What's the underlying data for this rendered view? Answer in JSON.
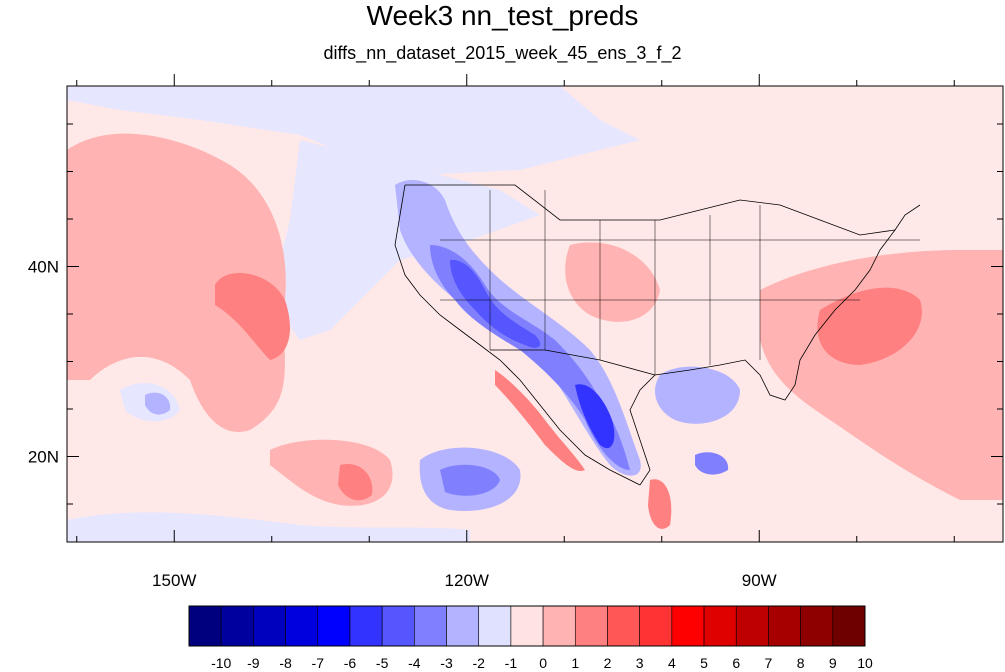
{
  "title": "Week3 nn_test_preds",
  "subtitle": "diffs_nn_dataset_2015_week_45_ens_3_f_2",
  "map": {
    "lon_range": [
      -161,
      -65
    ],
    "lat_range": [
      11,
      59
    ],
    "x_ticks": [
      {
        "lon": -150,
        "label": "150W"
      },
      {
        "lon": -120,
        "label": "120W"
      },
      {
        "lon": -90,
        "label": "90W"
      }
    ],
    "y_ticks": [
      {
        "lat": 40,
        "label": "40N"
      },
      {
        "lat": 20,
        "label": "20N"
      }
    ]
  },
  "colorbar": {
    "levels": [
      "-10",
      "-9",
      "-8",
      "-7",
      "-6",
      "-5",
      "-4",
      "-3",
      "-2",
      "-1",
      "0",
      "1",
      "2",
      "3",
      "4",
      "5",
      "6",
      "7",
      "8",
      "9",
      "10"
    ],
    "colors": [
      "#00007f",
      "#00009f",
      "#0000bf",
      "#0000df",
      "#0000ff",
      "#3333ff",
      "#5656ff",
      "#7f7fff",
      "#b3b3ff",
      "#e0e0ff",
      "#ffe3e3",
      "#ffb3b3",
      "#ff8080",
      "#ff5656",
      "#ff3333",
      "#ff0000",
      "#df0000",
      "#bf0000",
      "#a60000",
      "#8e0000",
      "#6f0000"
    ]
  }
}
